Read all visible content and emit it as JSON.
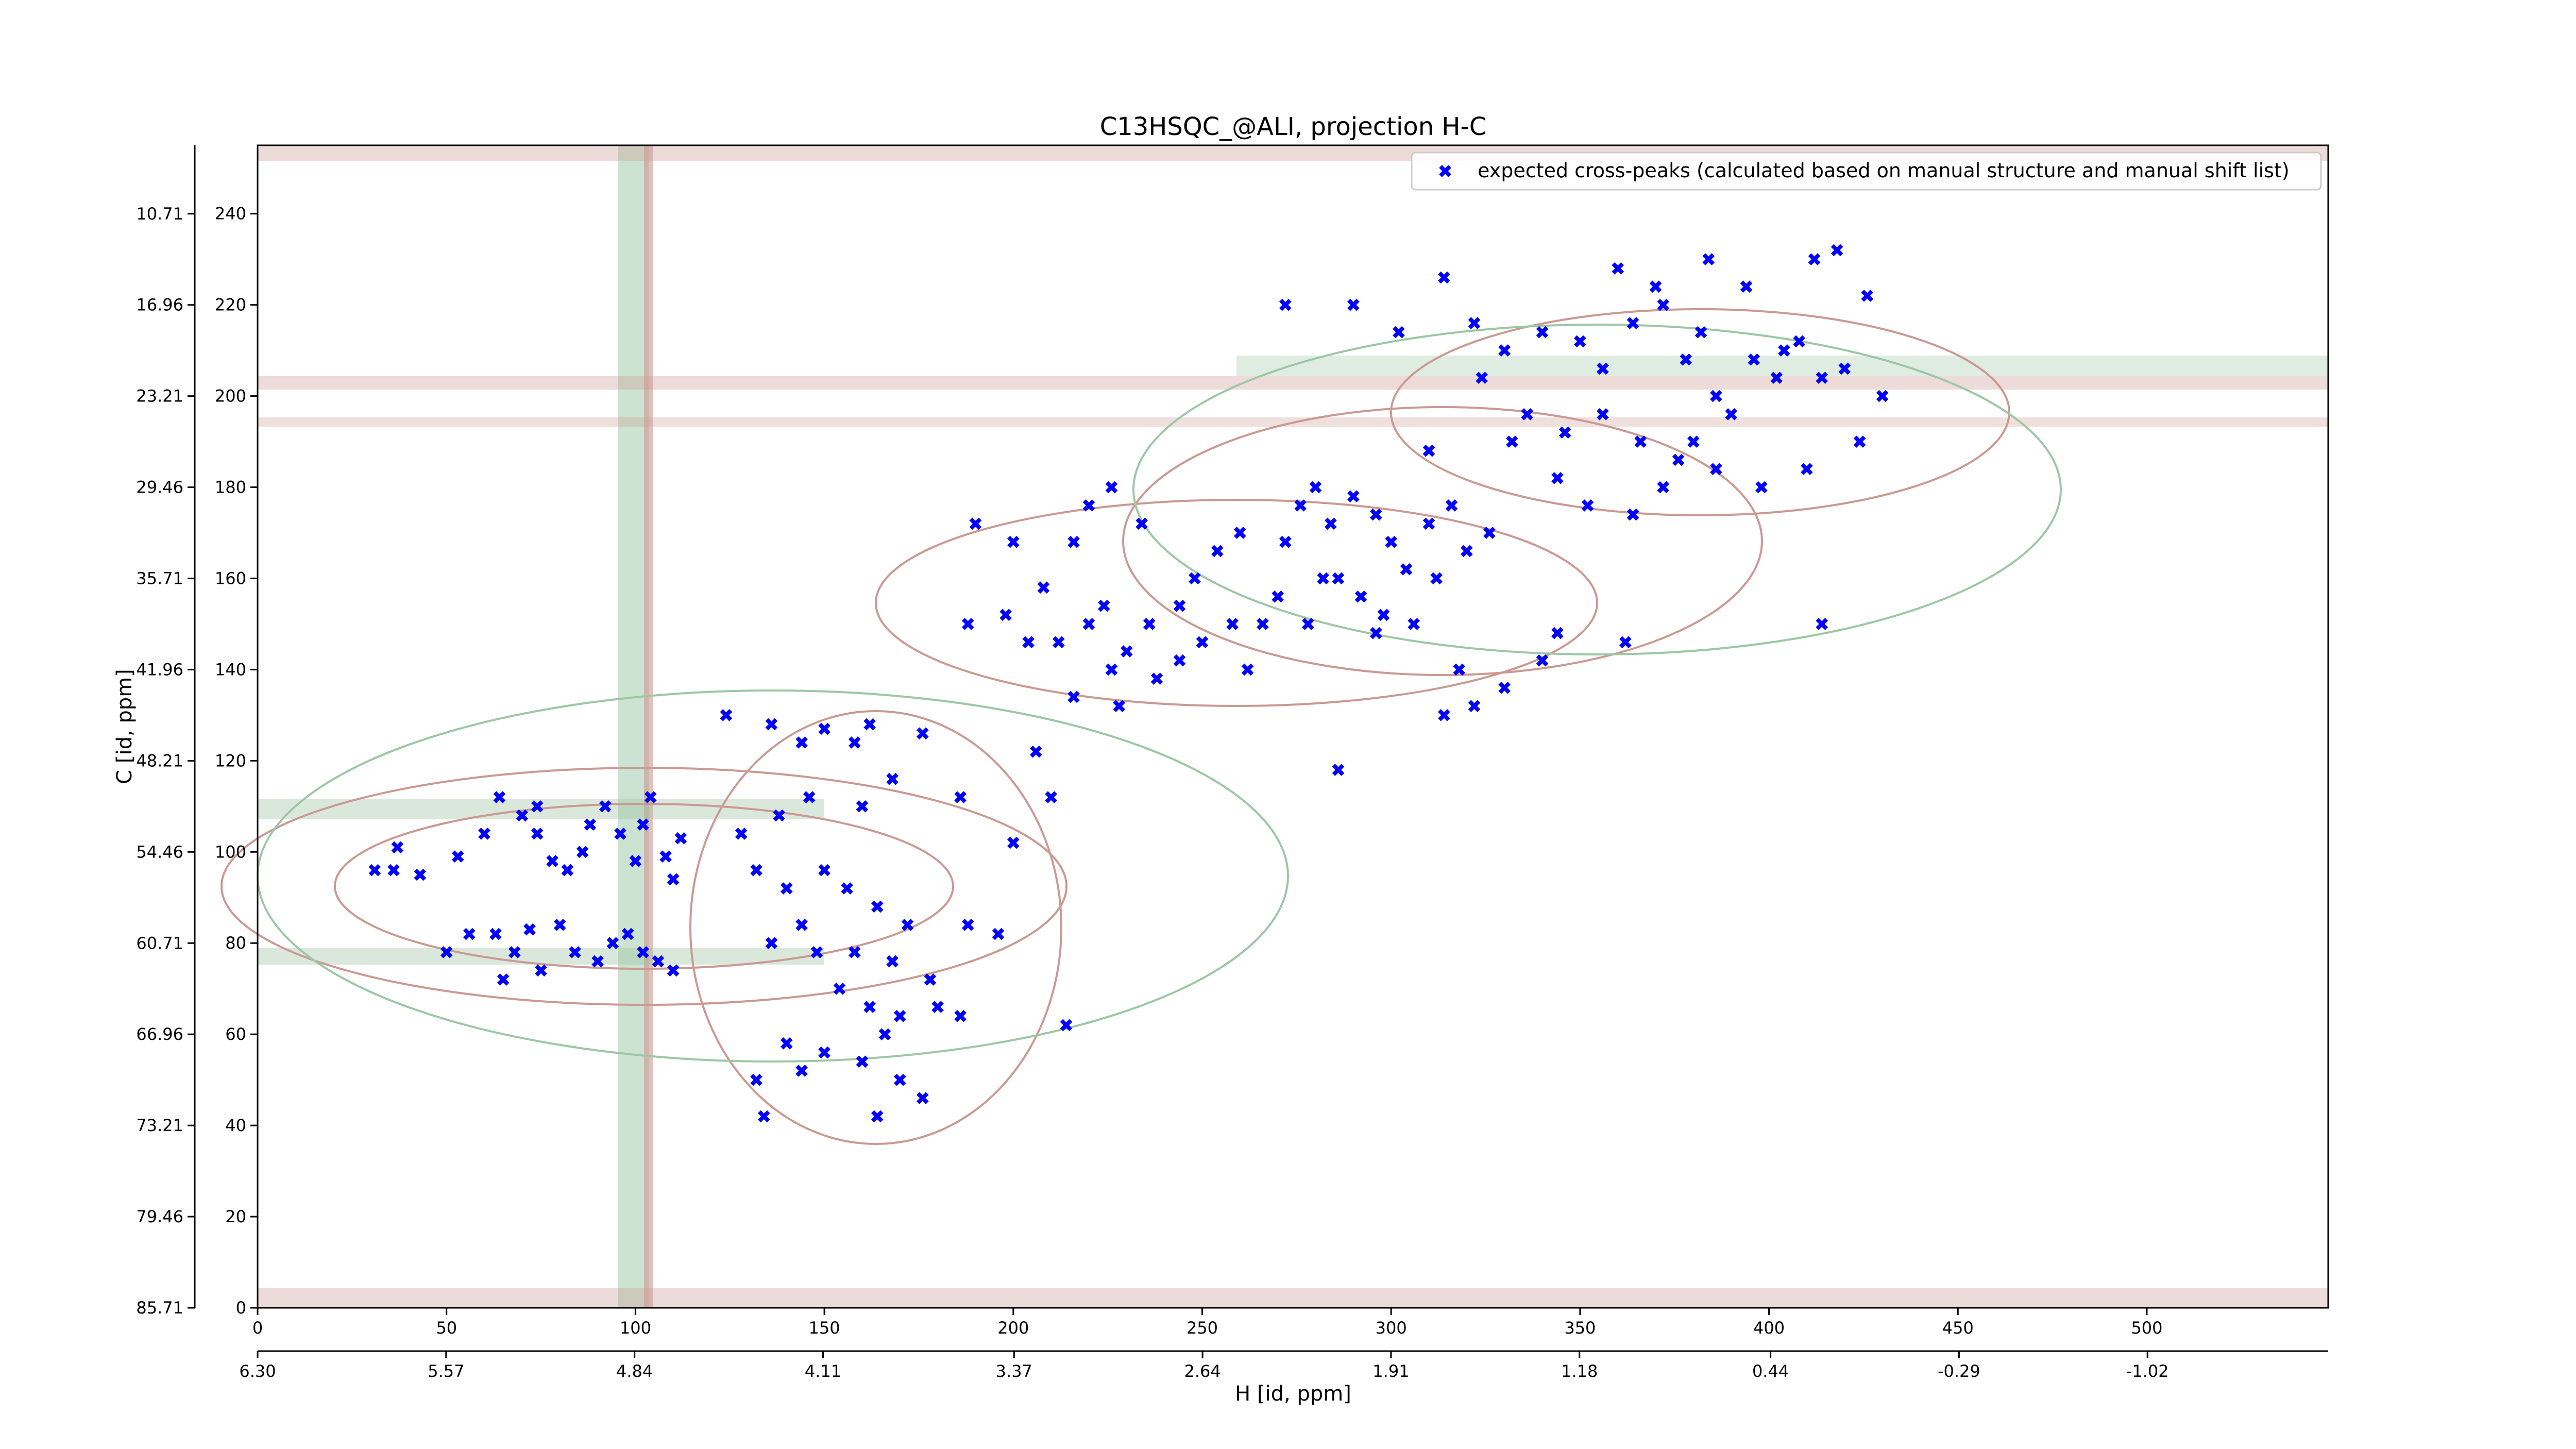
{
  "chart_data": {
    "type": "scatter",
    "title": "C13HSQC_@ALI, projection H-C",
    "x_label": "H [id, ppm]",
    "y_label": "C [id, ppm]",
    "xlim": [
      0,
      548
    ],
    "xticks": [
      0,
      50,
      100,
      150,
      200,
      250,
      300,
      350,
      400,
      450,
      500
    ],
    "ylim": [
      0,
      255
    ],
    "yticks": [
      0,
      20,
      40,
      60,
      80,
      100,
      120,
      140,
      160,
      180,
      200,
      220,
      240
    ],
    "x2lim": [
      6.3,
      -1.72
    ],
    "x2ticks": [
      {
        "value": 6.3,
        "label": "6.30"
      },
      5.57,
      4.84,
      4.11,
      3.37,
      2.64,
      1.91,
      1.18,
      0.44,
      -0.29,
      -1.02
    ],
    "y2lim": [
      85.71,
      6.02
    ],
    "y2ticks": [
      85.71,
      79.46,
      73.21,
      66.96,
      60.71,
      54.46,
      48.21,
      41.96,
      35.71,
      29.46,
      23.21,
      16.96,
      10.71
    ],
    "legend": "upper right",
    "series": [
      {
        "name": "expected cross-peaks (calculated based on manual structure and manual shift list)",
        "color": "#0000ff",
        "x": [
          31,
          36,
          37,
          43,
          53,
          60,
          64,
          70,
          74,
          74,
          78,
          82,
          86,
          88,
          92,
          96,
          100,
          102,
          104,
          108,
          110,
          112,
          56,
          63,
          50,
          68,
          72,
          80,
          84,
          90,
          94,
          98,
          102,
          106,
          110,
          65,
          75,
          124,
          136,
          144,
          150,
          158,
          162,
          176,
          168,
          160,
          146,
          138,
          128,
          132,
          140,
          150,
          156,
          164,
          172,
          144,
          136,
          148,
          158,
          168,
          178,
          154,
          162,
          170,
          180,
          186,
          140,
          132,
          144,
          150,
          160,
          166,
          170,
          176,
          164,
          134,
          188,
          196,
          214,
          186,
          200,
          210,
          206,
          190,
          200,
          208,
          216,
          220,
          226,
          234,
          212,
          220,
          226,
          230,
          238,
          244,
          250,
          258,
          262,
          266,
          270,
          248,
          254,
          260,
          272,
          276,
          280,
          284,
          290,
          296,
          300,
          304,
          310,
          316,
          286,
          292,
          298,
          306,
          312,
          320,
          326,
          318,
          330,
          340,
          344,
          296,
          282,
          278,
          244,
          236,
          224,
          216,
          228,
          188,
          198,
          204,
          314,
          322,
          286,
          362,
          414,
          324,
          330,
          340,
          350,
          356,
          364,
          372,
          378,
          382,
          386,
          390,
          396,
          402,
          408,
          414,
          420,
          430,
          336,
          346,
          356,
          366,
          376,
          386,
          398,
          410,
          364,
          372,
          380,
          352,
          344,
          332,
          426,
          424,
          412,
          418,
          404,
          394,
          384,
          370,
          360,
          322,
          310,
          272,
          290,
          302,
          314
        ],
        "values": [
          96,
          96,
          101,
          95,
          99,
          104,
          112,
          108,
          110,
          104,
          98,
          96,
          100,
          106,
          110,
          104,
          98,
          106,
          112,
          99,
          94,
          103,
          82,
          82,
          78,
          78,
          83,
          84,
          78,
          76,
          80,
          82,
          78,
          76,
          74,
          72,
          74,
          130,
          128,
          124,
          127,
          124,
          128,
          126,
          116,
          110,
          112,
          108,
          104,
          96,
          92,
          96,
          92,
          88,
          84,
          84,
          80,
          78,
          78,
          76,
          72,
          70,
          66,
          64,
          66,
          64,
          58,
          50,
          52,
          56,
          54,
          60,
          50,
          46,
          42,
          42,
          84,
          82,
          62,
          112,
          102,
          112,
          122,
          172,
          168,
          158,
          168,
          176,
          180,
          172,
          146,
          150,
          140,
          144,
          138,
          142,
          146,
          150,
          140,
          150,
          156,
          160,
          166,
          170,
          168,
          176,
          180,
          172,
          178,
          174,
          168,
          162,
          172,
          176,
          160,
          156,
          152,
          150,
          160,
          166,
          170,
          140,
          136,
          142,
          148,
          148,
          160,
          150,
          154,
          150,
          154,
          134,
          132,
          150,
          152,
          146,
          130,
          132,
          118,
          146,
          150,
          204,
          210,
          214,
          212,
          206,
          216,
          220,
          208,
          214,
          200,
          196,
          208,
          204,
          212,
          204,
          206,
          200,
          196,
          192,
          196,
          190,
          186,
          184,
          180,
          184,
          174,
          180,
          190,
          176,
          182,
          190,
          222,
          190,
          230,
          232,
          210,
          224,
          230,
          224,
          228,
          216,
          188,
          220,
          220,
          214,
          226
        ]
      }
    ]
  }
}
